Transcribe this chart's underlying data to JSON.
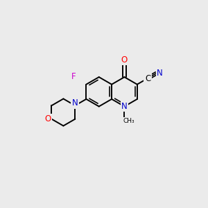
{
  "bg_color": "#ebebeb",
  "bond_color": "#000000",
  "atom_colors": {
    "N": "#0000cc",
    "O": "#ff0000",
    "F": "#cc00cc",
    "C": "#000000"
  },
  "figsize": [
    3.0,
    3.0
  ],
  "dpi": 100,
  "lw": 1.4,
  "lw_inner": 1.2,
  "ring_r": 0.72,
  "scale": 10
}
